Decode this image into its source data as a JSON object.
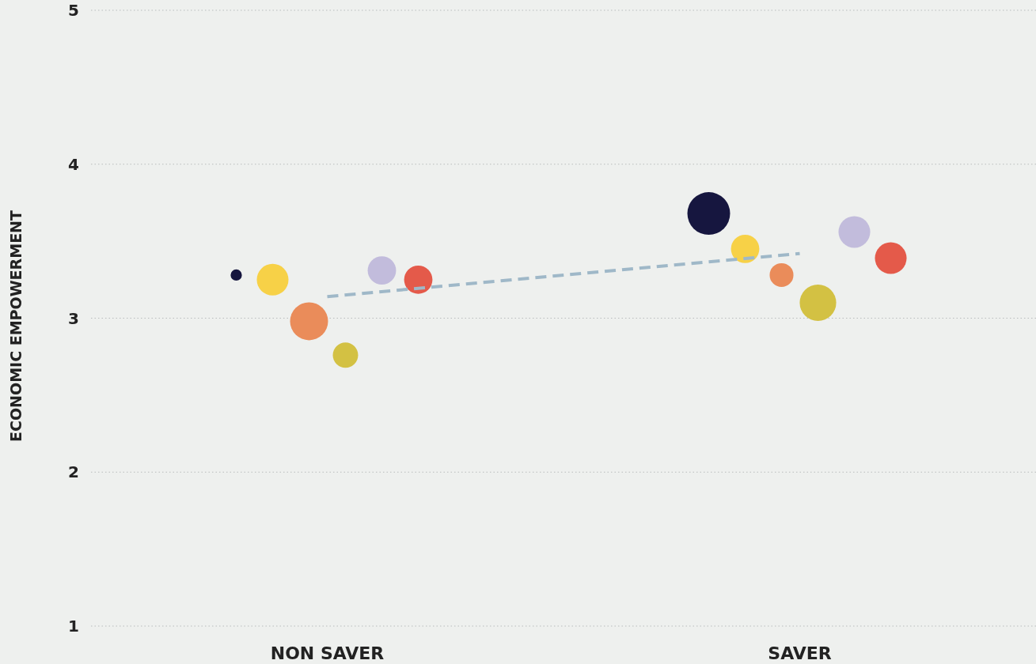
{
  "chart_data": {
    "type": "bubble",
    "ylabel": "ECONOMIC EMPOWERMENT",
    "categories": [
      "NON SAVER",
      "SAVER"
    ],
    "ylim": [
      1,
      5
    ],
    "yticks": [
      1,
      2,
      3,
      4,
      5
    ],
    "grid": "y",
    "series": [
      {
        "color": "#16163f",
        "values": [
          3.28,
          3.68
        ],
        "sizes": [
          0.07,
          1
        ]
      },
      {
        "color": "#f7d147",
        "values": [
          3.25,
          3.45
        ],
        "sizes": [
          0.55,
          0.44
        ]
      },
      {
        "color": "#ea8c5a",
        "values": [
          2.98,
          3.28
        ],
        "sizes": [
          0.79,
          0.31
        ]
      },
      {
        "color": "#d3c143",
        "values": [
          2.76,
          3.1
        ],
        "sizes": [
          0.35,
          0.73
        ]
      },
      {
        "color": "#c2bcdc",
        "values": [
          3.31,
          3.56
        ],
        "sizes": [
          0.44,
          0.55
        ]
      },
      {
        "color": "#e45a4a",
        "values": [
          3.25,
          3.39
        ],
        "sizes": [
          0.44,
          0.55
        ]
      },
      {
        "type": "line",
        "color": "#9fb8c8",
        "line_style": "dashed",
        "values": [
          3.14,
          3.42
        ]
      }
    ]
  }
}
